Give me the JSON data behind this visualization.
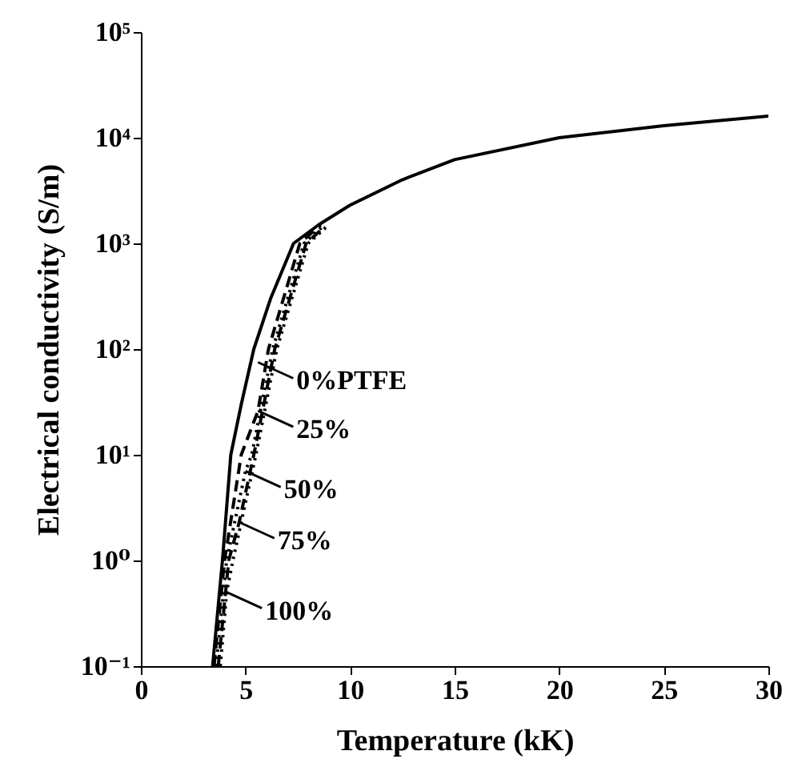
{
  "chart_data": {
    "type": "line",
    "xlabel": "Temperature (kK)",
    "ylabel": "Electrical conductivity (S/m)",
    "log": "y",
    "grid": false,
    "marker": "none",
    "xlim": [
      0,
      30
    ],
    "xticks": [
      0,
      5,
      10,
      15,
      20,
      25,
      30
    ],
    "ylim": [
      0.1,
      100000
    ],
    "yticks": [
      {
        "value": 0.1,
        "label": "10⁻¹"
      },
      {
        "value": 1,
        "label": "10⁰"
      },
      {
        "value": 10,
        "label": "10¹"
      },
      {
        "value": 100,
        "label": "10²"
      },
      {
        "value": 1000,
        "label": "10³"
      },
      {
        "value": 10000,
        "label": "10⁴"
      },
      {
        "value": 100000,
        "label": "10⁵"
      }
    ],
    "series": [
      {
        "color": "#000000",
        "line_style": "solid",
        "x": [
          3.43,
          3.9,
          4.3,
          4.8,
          5.4,
          6.2,
          7.3,
          8.5,
          10,
          12.5,
          15,
          20,
          25,
          30
        ],
        "values": [
          0.1,
          1,
          10,
          30,
          100,
          300,
          1000,
          1500,
          2300,
          4000,
          6200,
          10000,
          13000,
          16000
        ]
      },
      {
        "color": "#000000",
        "line_style": "dashed",
        "x": [
          3.5,
          4.0,
          4.8,
          5.6,
          6.1,
          7.6,
          8.6
        ],
        "values": [
          0.1,
          1,
          10,
          26,
          100,
          1000,
          1500
        ]
      },
      {
        "color": "#000000",
        "line_style": "dotted",
        "x": [
          3.6,
          4.1,
          5.0,
          5.3,
          6.3,
          7.8,
          8.7
        ],
        "values": [
          0.1,
          1,
          7,
          10,
          100,
          1000,
          1450
        ]
      },
      {
        "color": "#000000",
        "line_style": "dashed",
        "x": [
          3.7,
          4.2,
          4.7,
          5.4,
          6.4,
          7.9,
          8.8
        ],
        "values": [
          0.1,
          1,
          2.3,
          10,
          100,
          1000,
          1450
        ]
      },
      {
        "color": "#000000",
        "line_style": "dotted",
        "x": [
          3.8,
          4.1,
          4.4,
          5.5,
          6.5,
          8.0,
          8.9
        ],
        "values": [
          0.1,
          0.5,
          1,
          10,
          100,
          1000,
          1450
        ]
      }
    ],
    "annotations": [
      {
        "text": "0%PTFE",
        "x": 5.6,
        "y": 75
      },
      {
        "text": "25%",
        "x": 5.6,
        "y": 26
      },
      {
        "text": "50%",
        "x": 5.0,
        "y": 7
      },
      {
        "text": "75%",
        "x": 4.7,
        "y": 2.3
      },
      {
        "text": "100%",
        "x": 4.1,
        "y": 0.5
      }
    ]
  }
}
